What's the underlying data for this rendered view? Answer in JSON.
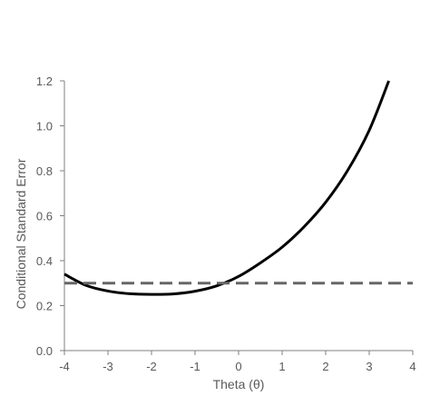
{
  "chart_data": {
    "type": "line",
    "title": "",
    "xlabel": "Theta (θ)",
    "ylabel": "Conditional Standard Error",
    "xlim": [
      -4,
      4
    ],
    "ylim": [
      0,
      1.2
    ],
    "x_ticks": [
      -4,
      -3,
      -2,
      -1,
      0,
      1,
      2,
      3,
      4
    ],
    "y_ticks": [
      0.0,
      0.2,
      0.4,
      0.6,
      0.8,
      1.0,
      1.2
    ],
    "x_tick_labels": [
      "-4",
      "-3",
      "-2",
      "-1",
      "0",
      "1",
      "2",
      "3",
      "4"
    ],
    "y_tick_labels": [
      "0.0",
      "0.2",
      "0.4",
      "0.6",
      "0.8",
      "1.0",
      "1.2"
    ],
    "grid": false,
    "legend": "none",
    "series": [
      {
        "style": "solid",
        "color": "#000000",
        "x": [
          -4.0,
          -3.5,
          -3.0,
          -2.5,
          -2.0,
          -1.5,
          -1.0,
          -0.5,
          0.0,
          0.5,
          1.0,
          1.5,
          2.0,
          2.5,
          3.0,
          3.45
        ],
        "y": [
          0.34,
          0.29,
          0.265,
          0.253,
          0.25,
          0.252,
          0.264,
          0.288,
          0.33,
          0.39,
          0.46,
          0.55,
          0.66,
          0.8,
          0.98,
          1.2
        ]
      },
      {
        "style": "dashed",
        "color": "#666666",
        "x": [
          -4.0,
          4.0
        ],
        "y": [
          0.3,
          0.3
        ]
      }
    ]
  }
}
